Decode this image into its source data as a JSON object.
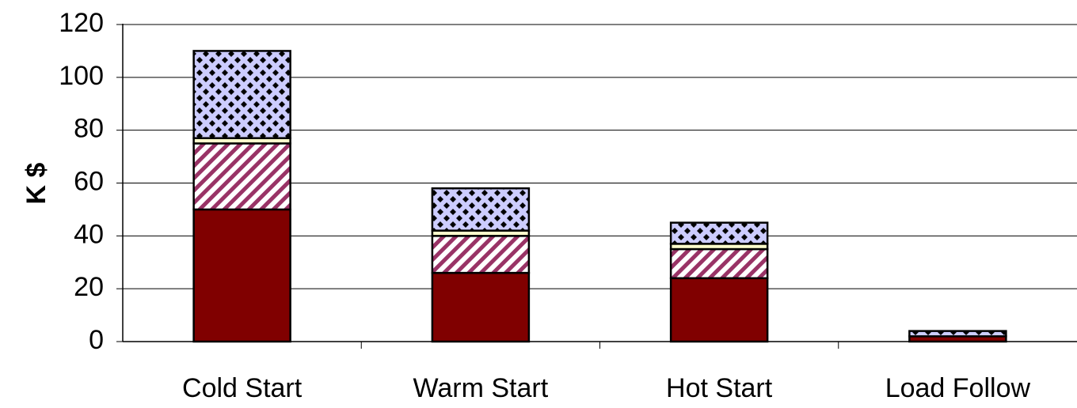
{
  "chart_data": {
    "type": "bar",
    "stacked": true,
    "title": "",
    "xlabel": "",
    "ylabel": "K $",
    "ylim": [
      0,
      120
    ],
    "yticks": [
      0,
      20,
      40,
      60,
      80,
      100,
      120
    ],
    "grid": true,
    "categories": [
      "Cold Start",
      "Warm Start",
      "Hot Start",
      "Load Follow"
    ],
    "series": [
      {
        "values": [
          50,
          26,
          24,
          2
        ],
        "color": "#800000",
        "pattern": "solid"
      },
      {
        "values": [
          25,
          14,
          11,
          0
        ],
        "color": "#993366",
        "pattern": "diagonal-stripes"
      },
      {
        "values": [
          2,
          2,
          2,
          0
        ],
        "color": "#ffffcc",
        "pattern": "solid"
      },
      {
        "values": [
          33,
          16,
          8,
          2
        ],
        "color": "#ccccff",
        "pattern": "diamond-checker"
      }
    ]
  }
}
